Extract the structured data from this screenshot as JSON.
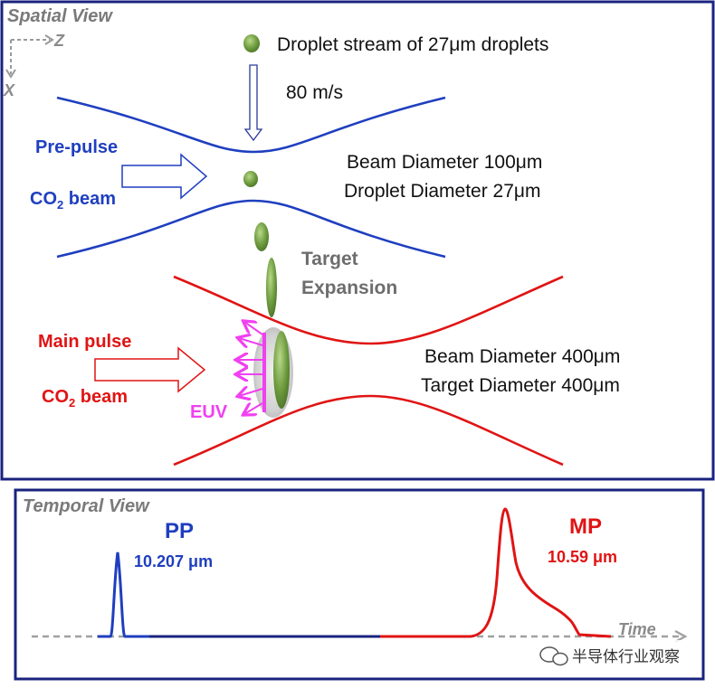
{
  "spatial": {
    "title": "Spatial View",
    "axis_z": "Z",
    "axis_x": "X",
    "droplet_stream": "Droplet stream of 27μm droplets",
    "speed": "80 m/s",
    "prepulse_line1": "Pre-pulse",
    "prepulse_line2": "CO",
    "prepulse_sub": "2",
    "prepulse_line3": " beam",
    "beam1_line1": "Beam Diameter 100μm",
    "beam1_line2": "Droplet Diameter 27μm",
    "target_line1": "Target",
    "target_line2": "Expansion",
    "main_line1": "Main pulse",
    "main_line2": "CO",
    "main_sub": "2",
    "main_line3": " beam",
    "euv": "EUV",
    "beam2_line1": "Beam Diameter 400μm",
    "beam2_line2": "Target Diameter 400μm"
  },
  "temporal": {
    "title": "Temporal View",
    "pp_label": "PP",
    "pp_wavelength": "10.207 μm",
    "mp_label": "MP",
    "mp_wavelength": "10.59 μm",
    "axis_label": "Time"
  },
  "watermark": "半导体行业观察",
  "colors": {
    "blue": "#1f3fbf",
    "red": "#e01414",
    "green": "#6e9c3f",
    "pink": "#f040f0",
    "frame": "#1a237e"
  }
}
